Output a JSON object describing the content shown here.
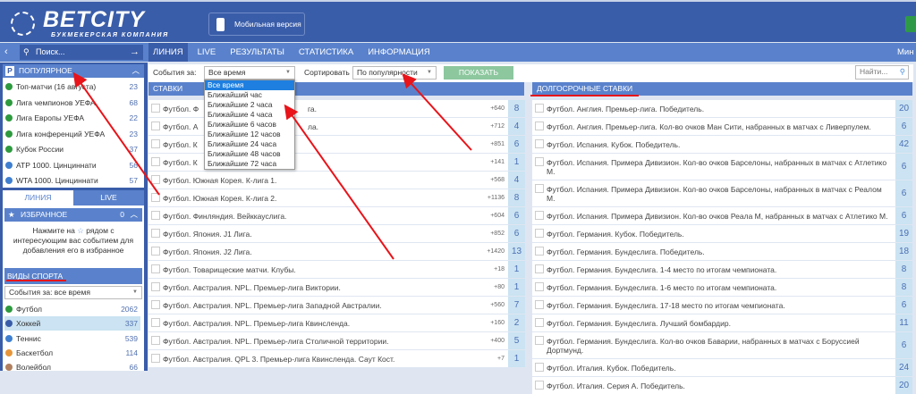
{
  "header": {
    "logo_name": "BETCITY",
    "logo_sub": "БУКМЕКЕРСКАЯ КОМПАНИЯ",
    "mobile_label": "Мобильная версия",
    "user_partial": "Мин"
  },
  "search": {
    "placeholder": "Поиск..."
  },
  "nav": [
    "ЛИНИЯ",
    "LIVE",
    "РЕЗУЛЬТАТЫ",
    "СТАТИСТИКА",
    "ИНФОРМАЦИЯ"
  ],
  "popular": {
    "title": "ПОПУЛЯРНОЕ",
    "items": [
      {
        "label": "Топ-матчи (16 августа)",
        "count": "23",
        "icon": "football"
      },
      {
        "label": "Лига чемпионов УЕФА",
        "count": "68",
        "icon": "football"
      },
      {
        "label": "Лига Европы УЕФА",
        "count": "22",
        "icon": "football"
      },
      {
        "label": "Лига конференций УЕФА",
        "count": "23",
        "icon": "football"
      },
      {
        "label": "Кубок России",
        "count": "37",
        "icon": "football"
      },
      {
        "label": "ATP 1000. Цинциннати",
        "count": "56",
        "icon": "tennis"
      },
      {
        "label": "WTA 1000. Цинциннати",
        "count": "57",
        "icon": "tennis"
      }
    ]
  },
  "side_tabs": [
    "ЛИНИЯ",
    "LIVE"
  ],
  "favorites": {
    "title": "ИЗБРАННОЕ",
    "count": "0",
    "hint_1": "Нажмите на",
    "hint_2": "рядом с интересующим вас событием для добавления его в избранное"
  },
  "sports": {
    "title": "ВИДЫ СПОРТА",
    "filter": "События за: все время",
    "items": [
      {
        "label": "Футбол",
        "count": "2062",
        "icon": "football"
      },
      {
        "label": "Хоккей",
        "count": "337",
        "icon": "hockey"
      },
      {
        "label": "Теннис",
        "count": "539",
        "icon": "tennis"
      },
      {
        "label": "Баскетбол",
        "count": "114",
        "icon": "basketball"
      },
      {
        "label": "Волейбол",
        "count": "66",
        "icon": "volleyball"
      }
    ]
  },
  "filter": {
    "events_label": "События за:",
    "events_value": "Все время",
    "sort_label": "Сортировать",
    "sort_value": "По популярности",
    "show_button": "ПОКАЗАТЬ",
    "find_placeholder": "Найти..."
  },
  "dropdown": {
    "options": [
      "Все время",
      "Ближайший час",
      "Ближайшие 2 часа",
      "Ближайшие 4 часа",
      "Ближайшие 6 часов",
      "Ближайшие 12 часов",
      "Ближайшие 24 часа",
      "Ближайшие 48 часов",
      "Ближайшие 72 часа"
    ],
    "selected": "Все время"
  },
  "bets": {
    "title": "СТАВКИ",
    "rows": [
      {
        "label": "Футбол. Ф",
        "tail": "га.",
        "plus": "+640",
        "count": "8"
      },
      {
        "label": "Футбол. А",
        "tail": "ла.",
        "plus": "+712",
        "count": "4"
      },
      {
        "label": "Футбол. К",
        "tail": "",
        "plus": "+851",
        "count": "6"
      },
      {
        "label": "Футбол. К",
        "tail": "",
        "plus": "+141",
        "count": "1"
      },
      {
        "label": "Футбол. Южная Корея. К-лига 1.",
        "plus": "+568",
        "count": "4"
      },
      {
        "label": "Футбол. Южная Корея. К-лига 2.",
        "plus": "+1136",
        "count": "8"
      },
      {
        "label": "Футбол. Финляндия. Вейккауслига.",
        "plus": "+604",
        "count": "6"
      },
      {
        "label": "Футбол. Япония. J1 Лига.",
        "plus": "+852",
        "count": "6"
      },
      {
        "label": "Футбол. Япония. J2 Лига.",
        "plus": "+1420",
        "count": "13"
      },
      {
        "label": "Футбол. Товарищеские матчи. Клубы.",
        "plus": "+18",
        "count": "1"
      },
      {
        "label": "Футбол. Австралия. NPL. Премьер-лига Виктории.",
        "plus": "+80",
        "count": "1"
      },
      {
        "label": "Футбол. Австралия. NPL. Премьер-лига Западной Австралии.",
        "plus": "+560",
        "count": "7"
      },
      {
        "label": "Футбол. Австралия. NPL. Премьер-лига Квинсленда.",
        "plus": "+160",
        "count": "2"
      },
      {
        "label": "Футбол. Австралия. NPL. Премьер-лига Столичной территории.",
        "plus": "+400",
        "count": "5"
      },
      {
        "label": "Футбол. Австралия. QPL 3. Премьер-лига Квинсленда. Саут Кост.",
        "plus": "+7",
        "count": "1"
      }
    ]
  },
  "long_bets": {
    "title": "ДОЛГОСРОЧНЫЕ СТАВКИ",
    "rows": [
      {
        "label": "Футбол. Англия. Премьер-лига. Победитель.",
        "count": "20"
      },
      {
        "label": "Футбол. Англия. Премьер-лига. Кол-во очков Ман Сити, набранных в матчах с Ливерпулем.",
        "count": "6"
      },
      {
        "label": "Футбол. Испания. Кубок. Победитель.",
        "count": "42"
      },
      {
        "label": "Футбол. Испания. Примера Дивизион. Кол-во очков Барселоны, набранных в матчах с Атлетико М.",
        "count": "6",
        "two": true
      },
      {
        "label": "Футбол. Испания. Примера Дивизион. Кол-во очков Барселоны, набранных в матчах с Реалом М.",
        "count": "6"
      },
      {
        "label": "Футбол. Испания. Примера Дивизион. Кол-во очков Реала М, набранных в матчах с Атлетико М.",
        "count": "6"
      },
      {
        "label": "Футбол. Германия. Кубок. Победитель.",
        "count": "19"
      },
      {
        "label": "Футбол. Германия. Бундеслига. Победитель.",
        "count": "18"
      },
      {
        "label": "Футбол. Германия. Бундеслига. 1-4 место по итогам чемпионата.",
        "count": "8"
      },
      {
        "label": "Футбол. Германия. Бундеслига. 1-6 место по итогам чемпионата.",
        "count": "8"
      },
      {
        "label": "Футбол. Германия. Бундеслига. 17-18 место по итогам чемпионата.",
        "count": "6"
      },
      {
        "label": "Футбол. Германия. Бундеслига. Лучший бомбардир.",
        "count": "11"
      },
      {
        "label": "Футбол. Германия. Бундеслига. Кол-во очков Баварии, набранных в матчах с Боруссией Дортмунд.",
        "count": "6",
        "two": true
      },
      {
        "label": "Футбол. Италия. Кубок. Победитель.",
        "count": "24"
      },
      {
        "label": "Футбол. Италия. Серия А. Победитель.",
        "count": "20"
      }
    ]
  },
  "colors": {
    "header": "#3a5da9",
    "nav": "#5a82cc",
    "annotation": "#e8141a",
    "count_cell": "#cbe3f2"
  }
}
